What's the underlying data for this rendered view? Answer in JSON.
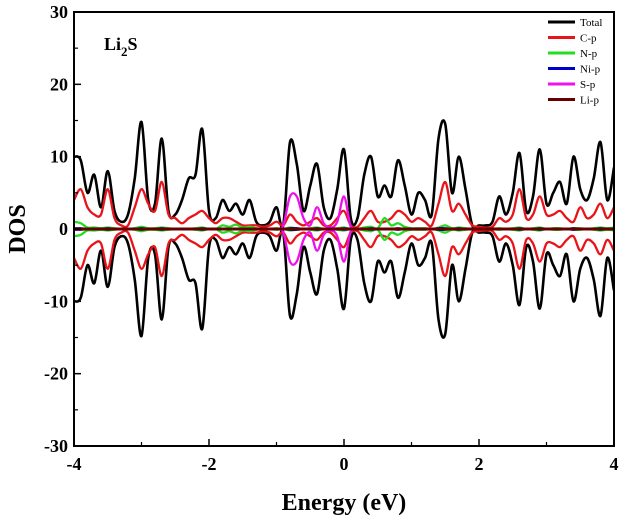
{
  "chart_data": {
    "type": "line",
    "title": "",
    "annotation": {
      "base": "Li",
      "subscript": "2",
      "suffix": "S"
    },
    "xlabel": "Energy (eV)",
    "ylabel": "DOS",
    "xlim": [
      -4,
      4
    ],
    "ylim": [
      -30,
      30
    ],
    "xticks": [
      -4,
      -2,
      0,
      2,
      4
    ],
    "yticks": [
      -30,
      -20,
      -10,
      0,
      10,
      20,
      30
    ],
    "xtick_labels": [
      "-4",
      "-2",
      "0",
      "2",
      "4"
    ],
    "ytick_labels": [
      "-30",
      "-20",
      "-10",
      "0",
      "10",
      "20",
      "30"
    ],
    "grid": false,
    "legend_position": "top-right",
    "mirrored_spin": true,
    "x": [
      -4.0,
      -3.9,
      -3.8,
      -3.7,
      -3.6,
      -3.5,
      -3.4,
      -3.3,
      -3.2,
      -3.1,
      -3.0,
      -2.9,
      -2.8,
      -2.7,
      -2.6,
      -2.5,
      -2.4,
      -2.3,
      -2.2,
      -2.1,
      -2.0,
      -1.9,
      -1.8,
      -1.7,
      -1.6,
      -1.5,
      -1.4,
      -1.3,
      -1.2,
      -1.1,
      -1.0,
      -0.9,
      -0.8,
      -0.7,
      -0.6,
      -0.5,
      -0.4,
      -0.3,
      -0.2,
      -0.1,
      0.0,
      0.1,
      0.2,
      0.3,
      0.4,
      0.5,
      0.6,
      0.7,
      0.8,
      0.9,
      1.0,
      1.1,
      1.2,
      1.3,
      1.4,
      1.5,
      1.6,
      1.7,
      1.8,
      1.9,
      2.0,
      2.1,
      2.2,
      2.3,
      2.4,
      2.5,
      2.6,
      2.7,
      2.8,
      2.9,
      3.0,
      3.1,
      3.2,
      3.3,
      3.4,
      3.5,
      3.6,
      3.7,
      3.8,
      3.9,
      4.0
    ],
    "series": [
      {
        "name": "Total",
        "color": "#000000",
        "values": [
          10,
          9.5,
          5,
          7.5,
          3,
          8,
          2.5,
          1,
          2,
          7,
          14.8,
          4,
          3.5,
          12.5,
          2.5,
          2,
          4,
          7,
          7.5,
          13.8,
          2.5,
          1.5,
          4,
          2.5,
          3.5,
          2,
          4,
          1,
          0.5,
          1,
          3,
          0.5,
          12,
          9,
          2.5,
          6,
          9,
          3,
          1.5,
          5.5,
          11,
          1.5,
          1.5,
          7.5,
          10,
          4.5,
          6,
          4.5,
          9.5,
          6,
          2,
          5,
          4,
          2,
          12.5,
          14.5,
          5,
          10,
          5.5,
          0.5,
          0.5,
          0.5,
          1,
          4.5,
          2,
          5,
          10.5,
          2.5,
          4.5,
          11,
          3.5,
          5,
          6.5,
          3.5,
          10,
          5.5,
          4,
          7,
          12,
          4,
          8.5
        ]
      },
      {
        "name": "C-p",
        "color": "#e8141a",
        "values": [
          4,
          5.5,
          3,
          2,
          2,
          5.5,
          1.5,
          0.5,
          0.5,
          3,
          5.5,
          3.5,
          2.5,
          6.5,
          2,
          1.5,
          0.8,
          1.5,
          2,
          2.5,
          1.5,
          0.8,
          1.5,
          1.5,
          1,
          0.5,
          0.5,
          0.5,
          0.3,
          0.5,
          1,
          0.5,
          2,
          1,
          0.5,
          1,
          1.5,
          0.5,
          0.5,
          1.5,
          2.5,
          0.5,
          0.3,
          1.5,
          2.5,
          1,
          1,
          1.5,
          2.5,
          2,
          1,
          1.5,
          1,
          0.5,
          3.5,
          6.5,
          2.5,
          3.5,
          2,
          0.5,
          0.3,
          0.2,
          0.3,
          1.5,
          1,
          2,
          5.5,
          1.5,
          2,
          4.5,
          2,
          2,
          2.5,
          1.5,
          1,
          3,
          1.5,
          2,
          3.5,
          1.5,
          3
        ]
      },
      {
        "name": "N-p",
        "color": "#22dd22",
        "values": [
          1,
          0.8,
          0.2,
          0.2,
          0.1,
          0.2,
          0.1,
          0,
          0,
          0.1,
          0.3,
          0.1,
          0.1,
          0.2,
          0.1,
          0,
          0,
          0,
          0.1,
          0.2,
          0,
          0,
          0.5,
          0.3,
          0.6,
          0.2,
          0.3,
          0.1,
          0,
          0,
          0.1,
          0,
          0.2,
          0.1,
          0,
          0.1,
          0.2,
          0,
          0,
          0.1,
          0.2,
          0,
          0,
          0.2,
          0.3,
          0.1,
          1.5,
          0.5,
          0.8,
          0.3,
          0.1,
          0.1,
          0.1,
          0,
          0.2,
          0.5,
          0.1,
          0.2,
          0.1,
          0,
          0,
          0,
          0,
          0.1,
          0,
          0.1,
          0.2,
          0,
          0.1,
          0.2,
          0,
          0.1,
          0.1,
          0,
          0.1,
          0.1,
          0,
          0.1,
          0.2,
          0.1,
          0.2
        ]
      },
      {
        "name": "Ni-p",
        "color": "#0000cc",
        "values": [
          0.1,
          0.1,
          0,
          0,
          0,
          0.1,
          0,
          0,
          0,
          0,
          0.1,
          0,
          0,
          0.1,
          0,
          0,
          0,
          0,
          0,
          0.1,
          0,
          0,
          0,
          0,
          0,
          0,
          0,
          0,
          0,
          0,
          0,
          0,
          0.1,
          0.1,
          0,
          0,
          0.1,
          0,
          0,
          0,
          0.1,
          0,
          0,
          0,
          0.1,
          0,
          0,
          0,
          0.1,
          0,
          0,
          0,
          0,
          0,
          0.1,
          0.1,
          0,
          0.1,
          0,
          0,
          0,
          0,
          0,
          0,
          0,
          0,
          0.1,
          0,
          0,
          0.1,
          0,
          0,
          0,
          0,
          0.1,
          0,
          0,
          0,
          0.1,
          0,
          0.1
        ]
      },
      {
        "name": "S-p",
        "color": "#ee11ee",
        "values": [
          0,
          0,
          0,
          0,
          0,
          0,
          0,
          0,
          0,
          0,
          0,
          0,
          0,
          0,
          0,
          0,
          0,
          0,
          0,
          0,
          0,
          0,
          0,
          0,
          0,
          0,
          0,
          0,
          0,
          0,
          0,
          0.5,
          4.5,
          4.5,
          1.5,
          0.5,
          3,
          0.8,
          0.2,
          1,
          4.5,
          0.3,
          0,
          0,
          0,
          0,
          0,
          0,
          0,
          0,
          0,
          0,
          0,
          0,
          0,
          0,
          0,
          0,
          0,
          0,
          0,
          0,
          0,
          0,
          0,
          0,
          0,
          0,
          0,
          0,
          0,
          0,
          0,
          0,
          0,
          0,
          0,
          0,
          0,
          0,
          0
        ]
      },
      {
        "name": "Li-p",
        "color": "#660000",
        "values": [
          0.05,
          0.05,
          0.05,
          0.05,
          0.05,
          0.05,
          0.05,
          0.05,
          0.05,
          0.05,
          0.05,
          0.05,
          0.05,
          0.05,
          0.05,
          0.05,
          0.05,
          0.05,
          0.05,
          0.05,
          0.05,
          0.05,
          0.05,
          0.05,
          0.05,
          0.05,
          0.05,
          0.05,
          0.05,
          0.05,
          0.05,
          0.05,
          0.05,
          0.05,
          0.05,
          0.05,
          0.05,
          0.05,
          0.05,
          0.05,
          0.05,
          0.05,
          0.05,
          0.05,
          0.05,
          0.05,
          0.05,
          0.05,
          0.05,
          0.05,
          0.05,
          0.05,
          0.05,
          0.05,
          0.05,
          0.05,
          0.05,
          0.05,
          0.05,
          0.05,
          0.05,
          0.05,
          0.05,
          0.05,
          0.05,
          0.05,
          0.05,
          0.05,
          0.05,
          0.05,
          0.05,
          0.05,
          0.05,
          0.05,
          0.05,
          0.05,
          0.05,
          0.05,
          0.05,
          0.05,
          0.05
        ]
      }
    ]
  }
}
